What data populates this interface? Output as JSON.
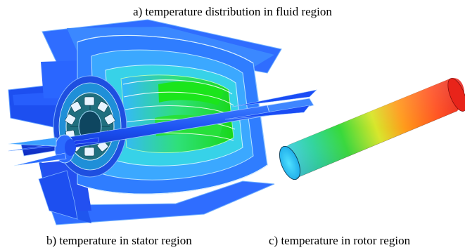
{
  "captions": {
    "fluid": "a) temperature distribution in fluid region",
    "stator": "b) temperature in stator region",
    "rotor": "c) temperature in rotor region"
  },
  "colors": {
    "cold": "#1a3cf0",
    "mid": "#23d12a",
    "hot": "#e51a14"
  }
}
